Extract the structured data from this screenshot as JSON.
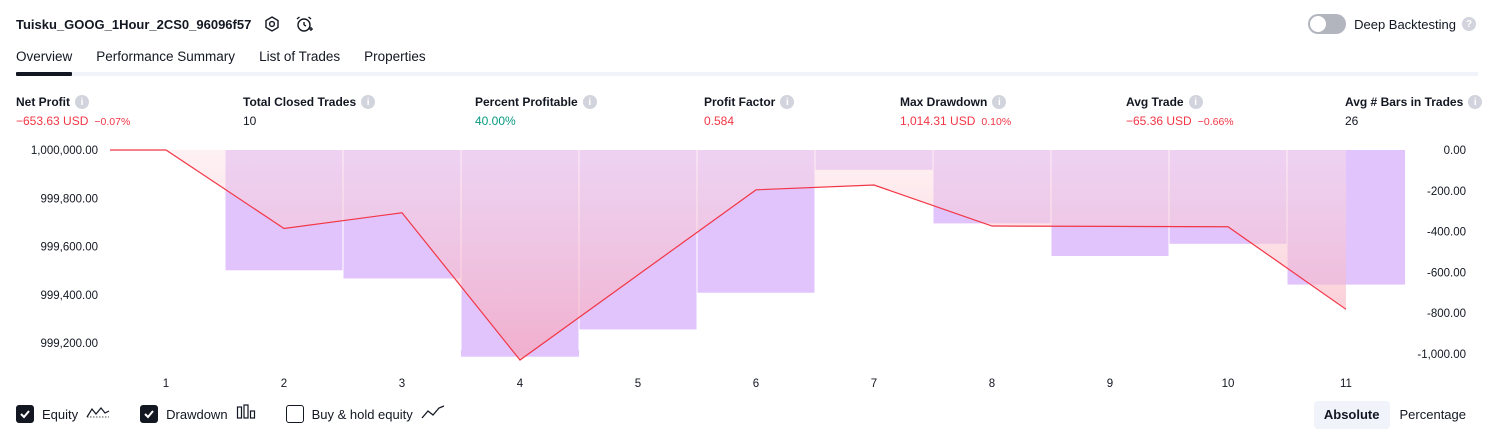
{
  "header": {
    "title": "Tuisku_GOOG_1Hour_2CS0_96096f57",
    "deep_backtesting_label": "Deep Backtesting"
  },
  "tabs": [
    {
      "label": "Overview",
      "active": true
    },
    {
      "label": "Performance Summary",
      "active": false
    },
    {
      "label": "List of Trades",
      "active": false
    },
    {
      "label": "Properties",
      "active": false
    }
  ],
  "metrics": [
    {
      "label": "Net Profit",
      "value": "−653.63 USD",
      "pct": "−0.07%",
      "color": "#f23645"
    },
    {
      "label": "Total Closed Trades",
      "value": "10",
      "pct": "",
      "color": "#131722"
    },
    {
      "label": "Percent Profitable",
      "value": "40.00%",
      "pct": "",
      "color": "#089981"
    },
    {
      "label": "Profit Factor",
      "value": "0.584",
      "pct": "",
      "color": "#f23645"
    },
    {
      "label": "Max Drawdown",
      "value": "1,014.31 USD",
      "pct": "0.10%",
      "color": "#f23645"
    },
    {
      "label": "Avg Trade",
      "value": "−65.36 USD",
      "pct": "−0.66%",
      "color": "#f23645"
    },
    {
      "label": "Avg # Bars in Trades",
      "value": "26",
      "pct": "",
      "color": "#131722"
    }
  ],
  "chart_data": {
    "type": "bar",
    "x": [
      1,
      2,
      3,
      4,
      5,
      6,
      7,
      8,
      9,
      10,
      11
    ],
    "left_axis": {
      "ticks": [
        "1,000,000.00",
        "999,800.00",
        "999,600.00",
        "999,400.00",
        "999,200.00"
      ],
      "tick_values": [
        1000000,
        999800,
        999600,
        999400,
        999200
      ],
      "ylim": [
        999130,
        1000000
      ]
    },
    "right_axis": {
      "ticks": [
        "0.00",
        "-200.00",
        "-400.00",
        "-600.00",
        "-800.00",
        "-1,000.00"
      ],
      "tick_values": [
        0,
        -200,
        -400,
        -600,
        -800,
        -1000
      ],
      "ylim": [
        -1030,
        0
      ]
    },
    "series": [
      {
        "name": "Equity",
        "type": "line",
        "values": [
          1000000,
          999675,
          999740,
          999130,
          null,
          999835,
          999855,
          999685,
          null,
          999682,
          999340
        ],
        "color": "#f23645"
      },
      {
        "name": "Drawdown",
        "type": "bar",
        "values": [
          0,
          -590,
          -630,
          -1014,
          -880,
          -700,
          -97,
          -360,
          -520,
          -460,
          -660
        ],
        "color": "#e1c4fc"
      }
    ],
    "colors": {
      "equity_line": "#f23645",
      "drawdown_bar": "#e1c4fc",
      "equity_fill": "#f7c1cb"
    }
  },
  "legend": [
    {
      "label": "Equity",
      "checked": true,
      "icon": "equity-line-icon"
    },
    {
      "label": "Drawdown",
      "checked": true,
      "icon": "drawdown-bars-icon"
    },
    {
      "label": "Buy & hold equity",
      "checked": false,
      "icon": "buy-hold-line-icon"
    }
  ],
  "scale_toggle": {
    "absolute": "Absolute",
    "percentage": "Percentage",
    "active": "Absolute"
  }
}
